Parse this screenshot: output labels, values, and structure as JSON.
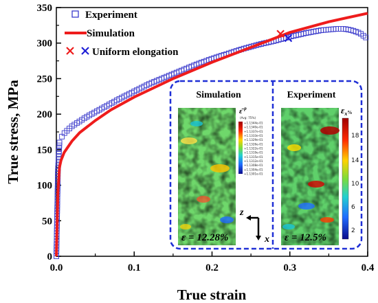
{
  "chart_data": {
    "type": "scatter",
    "title": "",
    "xlabel": "True strain",
    "ylabel": "True stress, MPa",
    "xlim": [
      0,
      0.4
    ],
    "ylim": [
      0,
      350
    ],
    "xticks": [
      "0.0",
      "0.1",
      "0.2",
      "0.3",
      "0.4"
    ],
    "yticks": [
      "0",
      "50",
      "100",
      "150",
      "200",
      "250",
      "300",
      "350"
    ],
    "grid": false,
    "legend_position": "top-left",
    "series": [
      {
        "name": "Experiment",
        "kind": "scatter",
        "marker": "open-square",
        "color": "#3a3acb",
        "x": [
          0,
          0.002,
          0.004,
          0.006,
          0.008,
          0.01,
          0.015,
          0.02,
          0.03,
          0.04,
          0.05,
          0.06,
          0.08,
          0.1,
          0.12,
          0.14,
          0.16,
          0.18,
          0.2,
          0.22,
          0.24,
          0.26,
          0.28,
          0.3,
          0.32,
          0.34,
          0.36,
          0.37,
          0.38,
          0.39,
          0.4
        ],
        "y": [
          0,
          120,
          160,
          166,
          170,
          173,
          178,
          183,
          190,
          197,
          203,
          209,
          221,
          232,
          243,
          252,
          261,
          270,
          278,
          285,
          292,
          298,
          303,
          309,
          314,
          318,
          320,
          320,
          318,
          314,
          306
        ]
      },
      {
        "name": "Simulation",
        "kind": "line",
        "color": "#ee1c1c",
        "x": [
          0,
          0.002,
          0.004,
          0.006,
          0.01,
          0.02,
          0.03,
          0.05,
          0.07,
          0.1,
          0.15,
          0.2,
          0.25,
          0.3,
          0.35,
          0.4
        ],
        "y": [
          0,
          90,
          125,
          135,
          146,
          162,
          174,
          191,
          206,
          224,
          250,
          273,
          294,
          315,
          330,
          342
        ]
      }
    ],
    "uniform_elongation": {
      "label": "Uniform elongation",
      "points": [
        {
          "series": "Simulation",
          "x": 0.288,
          "y": 313,
          "color": "#ee1c1c"
        },
        {
          "series": "Experiment",
          "x": 0.298,
          "y": 307,
          "color": "#1f1fd6"
        }
      ]
    },
    "inset": {
      "panels": [
        {
          "title": "Simulation",
          "strain_label": "ε = 12.28%"
        },
        {
          "title": "Experiment",
          "strain_label": "ε = 12.5%"
        }
      ],
      "sim_colorbar": {
        "header": "(Avg: 75%)",
        "labels": [
          "+1.1344e-01",
          "+1.1340e-01",
          "+1.1337e-01",
          "+1.1333e-01",
          "+1.1329e-01",
          "+1.1326e-01",
          "+1.1322e-01",
          "+1.1319e-01",
          "+1.1315e-01",
          "+1.1312e-01",
          "+1.1308e-01",
          "+1.1304e-01",
          "+1.1301e-01"
        ]
      },
      "exp_colorbar": {
        "ticks": [
          "18",
          "14",
          "10",
          "6",
          "2"
        ]
      },
      "axes_labels": {
        "z": "z",
        "x": "x"
      }
    }
  }
}
